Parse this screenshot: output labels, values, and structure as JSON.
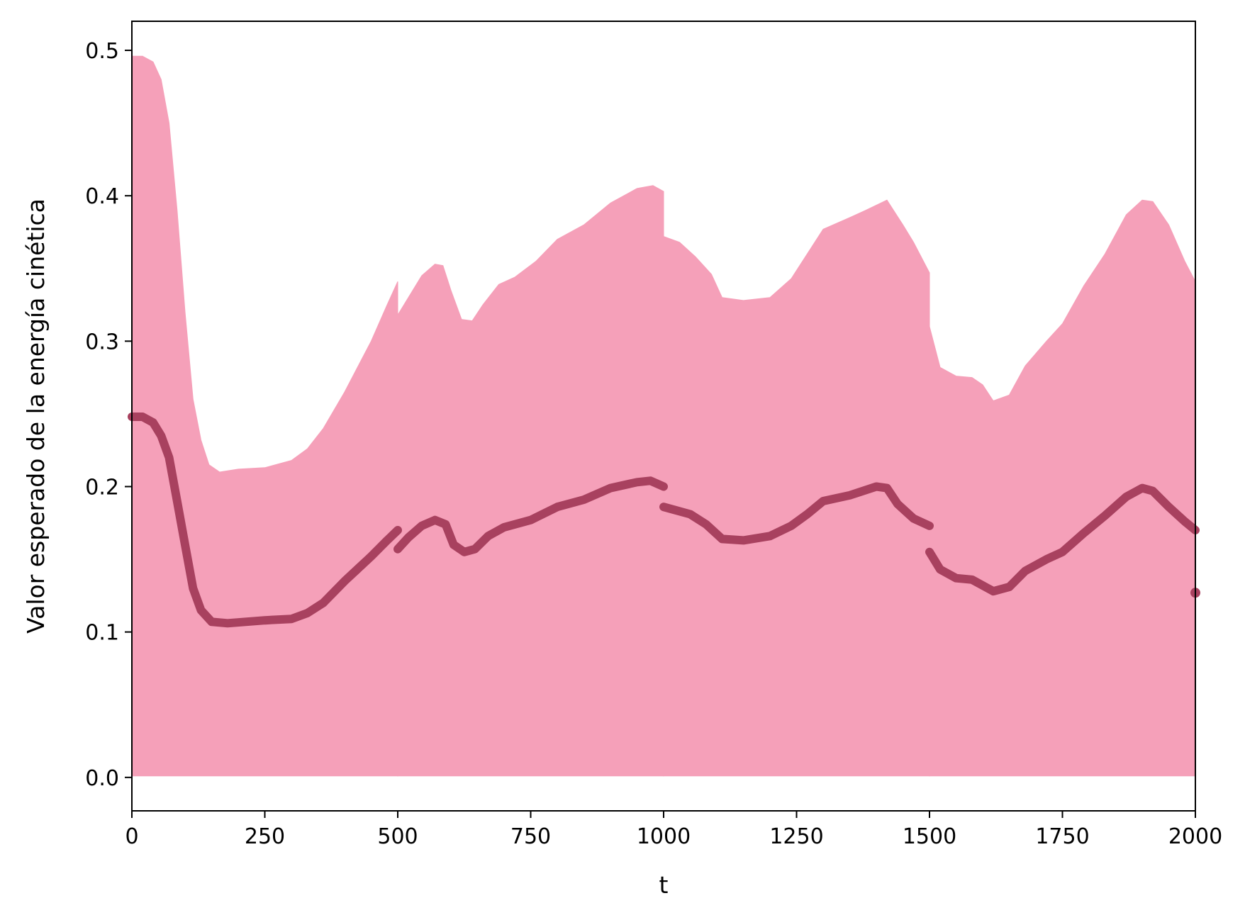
{
  "chart_data": {
    "type": "line",
    "title": "",
    "xlabel": "t",
    "ylabel": "Valor esperado de la energía cinética",
    "xlim": [
      0,
      2000
    ],
    "ylim": [
      -0.023,
      0.52
    ],
    "xticks": [
      0,
      250,
      500,
      750,
      1000,
      1250,
      1500,
      1750,
      2000
    ],
    "yticks": [
      0.0,
      0.1,
      0.2,
      0.3,
      0.4,
      0.5
    ],
    "xtick_labels": [
      "0",
      "250",
      "500",
      "750",
      "1000",
      "1250",
      "1500",
      "1750",
      "2000"
    ],
    "ytick_labels": [
      "0.0",
      "0.1",
      "0.2",
      "0.3",
      "0.4",
      "0.5"
    ],
    "grid": false,
    "legend": "none",
    "colors": {
      "band": "#f5a0b9",
      "line": "#a8415f"
    },
    "band": {
      "lower": [
        [
          0,
          0.001
        ],
        [
          2000,
          0.001
        ]
      ],
      "upper_segments": [
        [
          [
            0,
            0.496
          ],
          [
            20,
            0.496
          ],
          [
            40,
            0.492
          ],
          [
            55,
            0.48
          ],
          [
            70,
            0.45
          ],
          [
            85,
            0.39
          ],
          [
            100,
            0.32
          ],
          [
            115,
            0.26
          ],
          [
            130,
            0.232
          ],
          [
            145,
            0.215
          ],
          [
            165,
            0.21
          ],
          [
            200,
            0.212
          ],
          [
            250,
            0.213
          ],
          [
            300,
            0.218
          ],
          [
            330,
            0.226
          ],
          [
            360,
            0.24
          ],
          [
            400,
            0.265
          ],
          [
            450,
            0.3
          ],
          [
            480,
            0.325
          ],
          [
            500,
            0.341
          ]
        ],
        [
          [
            500,
            0.318
          ],
          [
            520,
            0.33
          ],
          [
            545,
            0.345
          ],
          [
            570,
            0.353
          ],
          [
            585,
            0.352
          ],
          [
            600,
            0.335
          ],
          [
            620,
            0.315
          ],
          [
            640,
            0.314
          ],
          [
            660,
            0.325
          ],
          [
            690,
            0.339
          ],
          [
            720,
            0.344
          ],
          [
            760,
            0.355
          ],
          [
            800,
            0.37
          ],
          [
            850,
            0.38
          ],
          [
            900,
            0.395
          ],
          [
            950,
            0.405
          ],
          [
            980,
            0.407
          ],
          [
            1000,
            0.403
          ]
        ],
        [
          [
            1000,
            0.372
          ],
          [
            1030,
            0.368
          ],
          [
            1060,
            0.358
          ],
          [
            1090,
            0.346
          ],
          [
            1110,
            0.33
          ],
          [
            1150,
            0.328
          ],
          [
            1200,
            0.33
          ],
          [
            1240,
            0.343
          ],
          [
            1270,
            0.36
          ],
          [
            1300,
            0.377
          ],
          [
            1350,
            0.385
          ],
          [
            1380,
            0.39
          ],
          [
            1420,
            0.397
          ],
          [
            1450,
            0.38
          ],
          [
            1470,
            0.368
          ],
          [
            1500,
            0.347
          ]
        ],
        [
          [
            1500,
            0.31
          ],
          [
            1520,
            0.282
          ],
          [
            1550,
            0.276
          ],
          [
            1580,
            0.275
          ],
          [
            1600,
            0.27
          ],
          [
            1620,
            0.259
          ],
          [
            1650,
            0.263
          ],
          [
            1680,
            0.283
          ],
          [
            1720,
            0.3
          ],
          [
            1750,
            0.312
          ],
          [
            1790,
            0.338
          ],
          [
            1830,
            0.36
          ],
          [
            1870,
            0.387
          ],
          [
            1900,
            0.397
          ],
          [
            1920,
            0.396
          ],
          [
            1950,
            0.38
          ],
          [
            1980,
            0.355
          ],
          [
            2000,
            0.341
          ]
        ]
      ]
    },
    "series": [
      {
        "segments": [
          [
            [
              0,
              0.248
            ],
            [
              20,
              0.248
            ],
            [
              40,
              0.244
            ],
            [
              55,
              0.235
            ],
            [
              70,
              0.22
            ],
            [
              85,
              0.19
            ],
            [
              100,
              0.16
            ],
            [
              115,
              0.13
            ],
            [
              130,
              0.115
            ],
            [
              150,
              0.107
            ],
            [
              180,
              0.106
            ],
            [
              250,
              0.108
            ],
            [
              300,
              0.109
            ],
            [
              330,
              0.113
            ],
            [
              360,
              0.12
            ],
            [
              400,
              0.135
            ],
            [
              450,
              0.152
            ],
            [
              480,
              0.163
            ],
            [
              500,
              0.17
            ]
          ],
          [
            [
              500,
              0.157
            ],
            [
              520,
              0.165
            ],
            [
              545,
              0.173
            ],
            [
              570,
              0.177
            ],
            [
              590,
              0.174
            ],
            [
              605,
              0.16
            ],
            [
              625,
              0.155
            ],
            [
              645,
              0.157
            ],
            [
              670,
              0.166
            ],
            [
              700,
              0.172
            ],
            [
              750,
              0.177
            ],
            [
              800,
              0.186
            ],
            [
              850,
              0.191
            ],
            [
              900,
              0.199
            ],
            [
              950,
              0.203
            ],
            [
              975,
              0.204
            ],
            [
              1000,
              0.2
            ]
          ],
          [
            [
              1000,
              0.186
            ],
            [
              1020,
              0.184
            ],
            [
              1050,
              0.181
            ],
            [
              1080,
              0.174
            ],
            [
              1110,
              0.164
            ],
            [
              1150,
              0.163
            ],
            [
              1200,
              0.166
            ],
            [
              1240,
              0.173
            ],
            [
              1270,
              0.181
            ],
            [
              1300,
              0.19
            ],
            [
              1350,
              0.194
            ],
            [
              1400,
              0.2
            ],
            [
              1420,
              0.199
            ],
            [
              1440,
              0.188
            ],
            [
              1470,
              0.178
            ],
            [
              1500,
              0.173
            ]
          ],
          [
            [
              1500,
              0.155
            ],
            [
              1520,
              0.143
            ],
            [
              1550,
              0.137
            ],
            [
              1580,
              0.136
            ],
            [
              1600,
              0.132
            ],
            [
              1620,
              0.128
            ],
            [
              1650,
              0.131
            ],
            [
              1680,
              0.142
            ],
            [
              1720,
              0.15
            ],
            [
              1750,
              0.155
            ],
            [
              1790,
              0.168
            ],
            [
              1830,
              0.18
            ],
            [
              1870,
              0.193
            ],
            [
              1900,
              0.199
            ],
            [
              1920,
              0.197
            ],
            [
              1950,
              0.186
            ],
            [
              1980,
              0.176
            ],
            [
              2000,
              0.17
            ]
          ],
          [
            [
              2000,
              0.127
            ]
          ]
        ]
      }
    ]
  }
}
